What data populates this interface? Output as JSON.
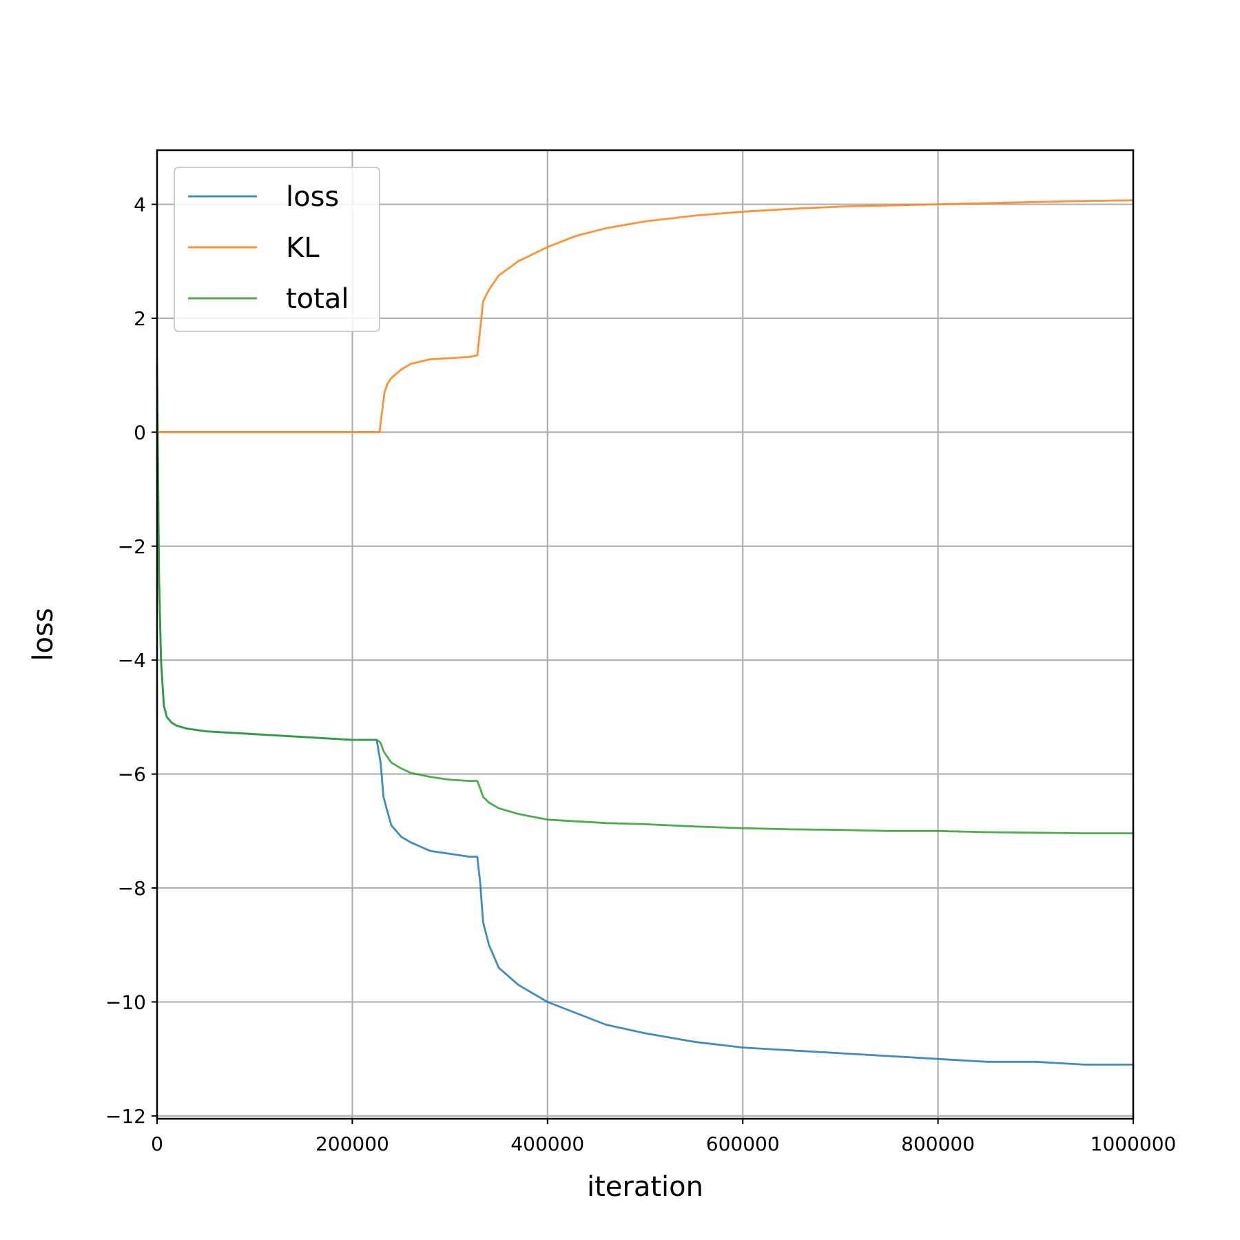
{
  "chart_data": {
    "type": "line",
    "title": "",
    "xlabel": "iteration",
    "ylabel": "loss",
    "xlim": [
      0,
      1000000
    ],
    "ylim": [
      -12.05,
      4.95
    ],
    "xticks": [
      0,
      200000,
      400000,
      600000,
      800000,
      1000000
    ],
    "xtick_labels": [
      "0",
      "200000",
      "400000",
      "600000",
      "800000",
      "1000000"
    ],
    "yticks": [
      -12,
      -10,
      -8,
      -6,
      -4,
      -2,
      0,
      2,
      4
    ],
    "ytick_labels": [
      "−12",
      "−10",
      "−8",
      "−6",
      "−4",
      "−2",
      "0",
      "2",
      "4"
    ],
    "grid": true,
    "legend_position": "top-left",
    "series": [
      {
        "name": "loss",
        "color": "#1f77b4",
        "x": [
          0,
          2000,
          4000,
          7000,
          10000,
          15000,
          20000,
          30000,
          50000,
          100000,
          150000,
          200000,
          225000,
          229000,
          232000,
          235000,
          240000,
          250000,
          260000,
          280000,
          300000,
          320000,
          328000,
          331000,
          334000,
          340000,
          350000,
          370000,
          400000,
          430000,
          460000,
          500000,
          550000,
          600000,
          650000,
          700000,
          750000,
          800000,
          850000,
          900000,
          950000,
          1000000
        ],
        "y": [
          1.2,
          -2.5,
          -4.0,
          -4.8,
          -5.0,
          -5.1,
          -5.15,
          -5.2,
          -5.25,
          -5.3,
          -5.35,
          -5.4,
          -5.4,
          -5.8,
          -6.4,
          -6.6,
          -6.9,
          -7.1,
          -7.2,
          -7.35,
          -7.4,
          -7.45,
          -7.45,
          -7.9,
          -8.6,
          -9.0,
          -9.4,
          -9.7,
          -10.0,
          -10.2,
          -10.4,
          -10.55,
          -10.7,
          -10.8,
          -10.85,
          -10.9,
          -10.95,
          -11.0,
          -11.05,
          -11.05,
          -11.1,
          -11.1
        ]
      },
      {
        "name": "KL",
        "color": "#ff7f0e",
        "x": [
          0,
          100000,
          200000,
          228000,
          230000,
          233000,
          236000,
          240000,
          250000,
          260000,
          280000,
          300000,
          320000,
          328000,
          331000,
          334000,
          340000,
          350000,
          370000,
          400000,
          430000,
          460000,
          500000,
          550000,
          600000,
          650000,
          700000,
          750000,
          800000,
          850000,
          900000,
          950000,
          1000000
        ],
        "y": [
          0.0,
          0.0,
          0.0,
          0.0,
          0.3,
          0.7,
          0.85,
          0.95,
          1.1,
          1.2,
          1.28,
          1.3,
          1.32,
          1.35,
          1.8,
          2.3,
          2.5,
          2.75,
          3.0,
          3.25,
          3.45,
          3.58,
          3.7,
          3.8,
          3.87,
          3.92,
          3.96,
          3.98,
          4.0,
          4.02,
          4.04,
          4.06,
          4.07
        ]
      },
      {
        "name": "total",
        "color": "#2ca02c",
        "x": [
          0,
          2000,
          4000,
          7000,
          10000,
          15000,
          20000,
          30000,
          50000,
          100000,
          150000,
          200000,
          225000,
          229000,
          232000,
          236000,
          240000,
          250000,
          260000,
          280000,
          300000,
          320000,
          328000,
          331000,
          334000,
          340000,
          350000,
          370000,
          400000,
          430000,
          460000,
          500000,
          550000,
          600000,
          650000,
          700000,
          750000,
          800000,
          850000,
          900000,
          950000,
          1000000
        ],
        "y": [
          1.2,
          -2.5,
          -4.0,
          -4.8,
          -5.0,
          -5.1,
          -5.15,
          -5.2,
          -5.25,
          -5.3,
          -5.35,
          -5.4,
          -5.4,
          -5.45,
          -5.6,
          -5.7,
          -5.8,
          -5.9,
          -5.98,
          -6.05,
          -6.1,
          -6.12,
          -6.12,
          -6.25,
          -6.4,
          -6.5,
          -6.6,
          -6.7,
          -6.8,
          -6.83,
          -6.86,
          -6.88,
          -6.92,
          -6.95,
          -6.97,
          -6.98,
          -7.0,
          -7.0,
          -7.02,
          -7.03,
          -7.04,
          -7.04
        ]
      }
    ]
  }
}
